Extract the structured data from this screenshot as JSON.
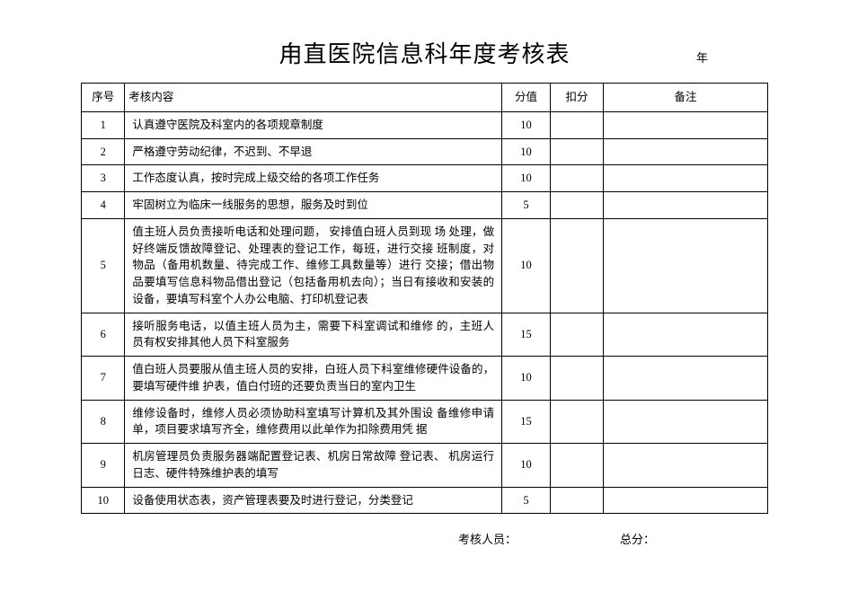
{
  "title": "甪直医院信息科年度考核表",
  "year_label": "年",
  "columns": {
    "seq": "序号",
    "content": "考核内容",
    "score": "分值",
    "deduct": "扣分",
    "remark": "备注"
  },
  "rows": [
    {
      "seq": "1",
      "content": "认真遵守医院及科室内的各项规章制度",
      "score": "10",
      "deduct": "",
      "remark": ""
    },
    {
      "seq": "2",
      "content": "严格遵守劳动纪律，不迟到、不早退",
      "score": "10",
      "deduct": "",
      "remark": ""
    },
    {
      "seq": "3",
      "content": "工作态度认真，按时完成上级交给的各项工作任务",
      "score": "10",
      "deduct": "",
      "remark": ""
    },
    {
      "seq": "4",
      "content": "牢固树立为临床一线服务的思想，服务及时到位",
      "score": "5",
      "deduct": "",
      "remark": ""
    },
    {
      "seq": "5",
      "content": "值主班人员负责接听电话和处理问题， 安排值白班人员到现 场 处理，做好终端反馈故障登记、处理表的登记工作，每班，进行交接 班制度，对物品（备用机数量、待完成工作、维修工具数量等）进行 交接；借出物品要填写信息科物品借出登记（包括备用机去向）；当日有接收和安装的设备，要填写科室个人办公电脑、打印机登记表",
      "score": "10",
      "deduct": "",
      "remark": ""
    },
    {
      "seq": "6",
      "content": "接听服务电话，以值主班人员为主，需要下科室调试和维修 的，主班人员有权安排其他人员下科室服务",
      "score": "15",
      "deduct": "",
      "remark": ""
    },
    {
      "seq": "7",
      "content": "值白班人员要服从值主班人员的安排，白班人员下科室维修硬件设备的，要填写硬件维 护表，值白付班的还要负责当日的室内卫生",
      "score": "10",
      "deduct": "",
      "remark": ""
    },
    {
      "seq": "8",
      "content": "维修设备时，维修人员必须协助科室填写计算机及其外围设 备维修申请单，项目要求填写齐全，维修费用以此单作为扣除费用凭 据",
      "score": "15",
      "deduct": "",
      "remark": ""
    },
    {
      "seq": "9",
      "content": "机房管理员负责服务器端配置登记表、机房日常故障\n登记表、 机房运行日志、硬件特殊维护表的填写",
      "score": "10",
      "deduct": "",
      "remark": ""
    },
    {
      "seq": "10",
      "content": "设备使用状态表，资产管理表要及时进行登记，分类登记",
      "score": "5",
      "deduct": "",
      "remark": ""
    }
  ],
  "footer": {
    "assessor_label": "考核人员：",
    "total_label": "总分："
  }
}
